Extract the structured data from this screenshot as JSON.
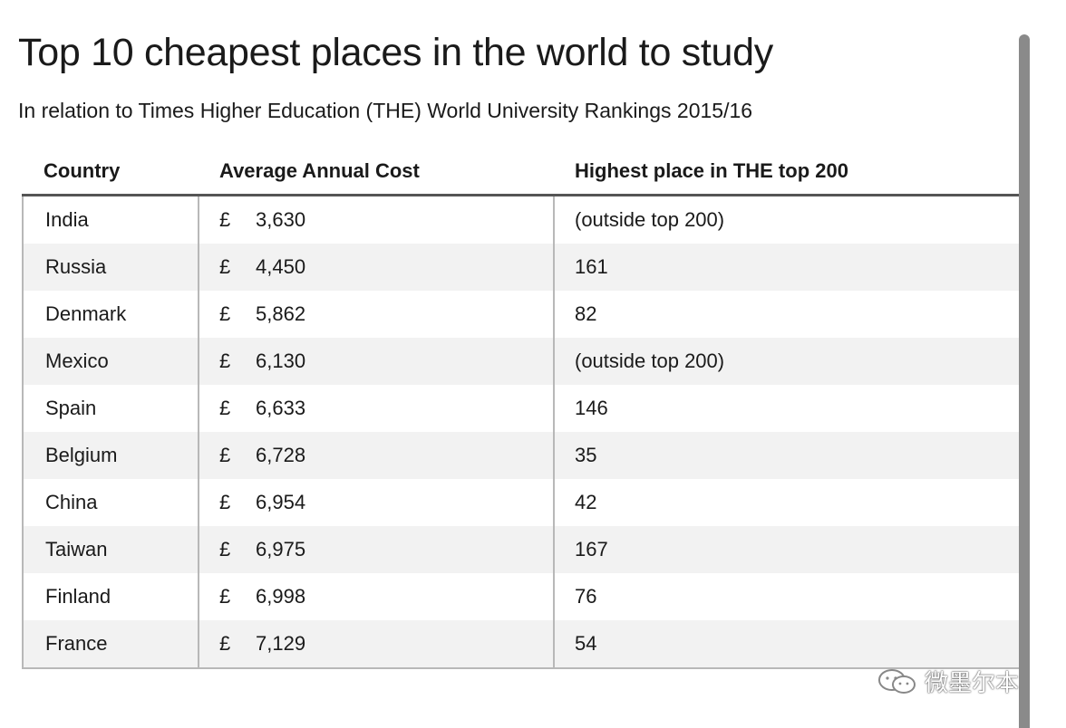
{
  "title": "Top 10 cheapest places in the world to study",
  "subtitle": "In relation to Times Higher Education (THE) World University Rankings 2015/16",
  "watermark": "微墨尔本",
  "chart_data": {
    "type": "table",
    "columns": [
      "Country",
      "Average Annual Cost",
      "Highest place in THE top 200"
    ],
    "currency_symbol": "£",
    "rows": [
      {
        "country": "India",
        "cost": "3,630",
        "rank": "(outside top 200)"
      },
      {
        "country": "Russia",
        "cost": "4,450",
        "rank": "161"
      },
      {
        "country": "Denmark",
        "cost": "5,862",
        "rank": "82"
      },
      {
        "country": "Mexico",
        "cost": "6,130",
        "rank": "(outside top 200)"
      },
      {
        "country": "Spain",
        "cost": "6,633",
        "rank": "146"
      },
      {
        "country": "Belgium",
        "cost": "6,728",
        "rank": "35"
      },
      {
        "country": "China",
        "cost": "6,954",
        "rank": "42"
      },
      {
        "country": "Taiwan",
        "cost": "6,975",
        "rank": "167"
      },
      {
        "country": "Finland",
        "cost": "6,998",
        "rank": "76"
      },
      {
        "country": "France",
        "cost": "7,129",
        "rank": "54"
      }
    ]
  }
}
